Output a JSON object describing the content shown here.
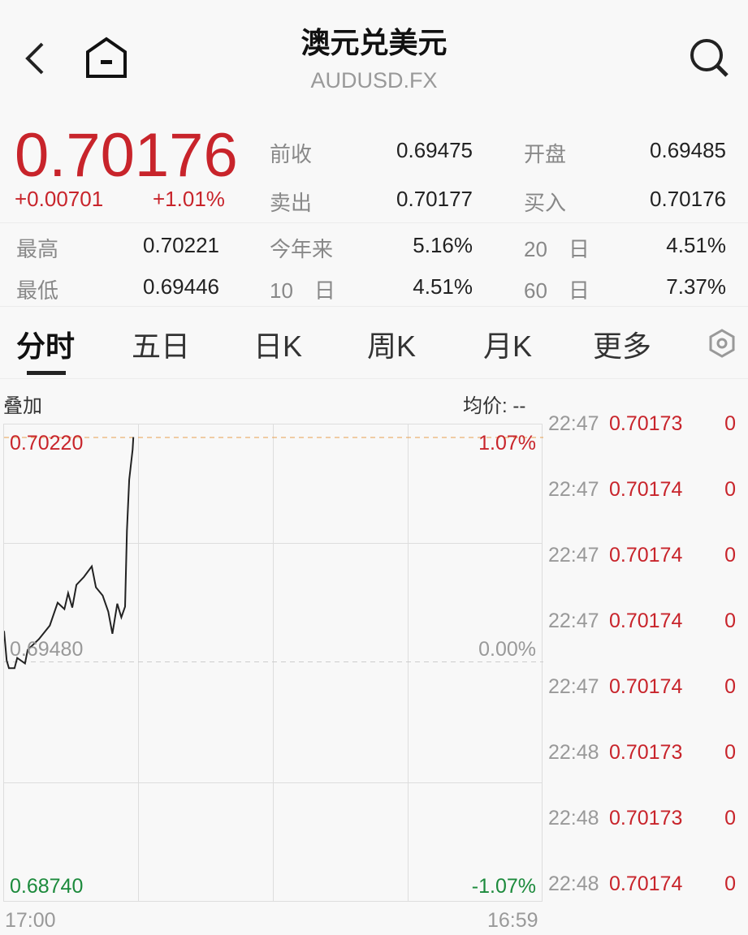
{
  "header": {
    "title": "澳元兑美元",
    "symbol": "AUDUSD.FX",
    "icons": [
      "back-icon",
      "home-icon",
      "search-icon"
    ]
  },
  "quote": {
    "price": "0.70176",
    "change": "+0.00701",
    "change_pct": "+1.01%",
    "stats": [
      {
        "label": "前收",
        "value": "0.69475"
      },
      {
        "label": "开盘",
        "value": "0.69485"
      },
      {
        "label": "卖出",
        "value": "0.70177"
      },
      {
        "label": "买入",
        "value": "0.70176"
      },
      {
        "label": "最高",
        "value": "0.70221"
      },
      {
        "label": "今年来",
        "value": "5.16%"
      },
      {
        "label": "20　日",
        "value": "4.51%"
      },
      {
        "label": "最低",
        "value": "0.69446"
      },
      {
        "label": "10　日",
        "value": "4.51%"
      },
      {
        "label": "60　日",
        "value": "7.37%"
      }
    ]
  },
  "tabs": [
    "分时",
    "五日",
    "日K",
    "周K",
    "月K",
    "更多"
  ],
  "chart_header": {
    "overlay": "叠加",
    "avg_price": "均价: --"
  },
  "colors": {
    "up": "#c8242b",
    "down": "#1c8a3c",
    "line": "#222222"
  },
  "chart_data": {
    "type": "line",
    "x_start": "17:00",
    "x_end": "16:59",
    "y_top": "0.70220",
    "y_mid": "0.69480",
    "y_bottom": "0.68740",
    "pct_top": "1.07%",
    "pct_mid": "0.00%",
    "pct_bottom": "-1.07%",
    "ylim": [
      0.6874,
      0.7022
    ],
    "points": [
      [
        "17:00",
        0.69582
      ],
      [
        "17:07",
        0.69485
      ],
      [
        "17:13",
        0.69459
      ],
      [
        "17:28",
        0.69459
      ],
      [
        "17:35",
        0.69493
      ],
      [
        "17:56",
        0.69475
      ],
      [
        "18:03",
        0.6952
      ],
      [
        "18:33",
        0.69555
      ],
      [
        "19:02",
        0.696
      ],
      [
        "19:23",
        0.69675
      ],
      [
        "19:41",
        0.69654
      ],
      [
        "19:51",
        0.69707
      ],
      [
        "20:02",
        0.69659
      ],
      [
        "20:13",
        0.69734
      ],
      [
        "20:33",
        0.6976
      ],
      [
        "20:54",
        0.69795
      ],
      [
        "21:05",
        0.69726
      ],
      [
        "21:23",
        0.69699
      ],
      [
        "21:38",
        0.69646
      ],
      [
        "21:49",
        0.69573
      ],
      [
        "22:02",
        0.69672
      ],
      [
        "22:13",
        0.69627
      ],
      [
        "22:23",
        0.69662
      ],
      [
        "22:28",
        0.69913
      ],
      [
        "22:34",
        0.70081
      ],
      [
        "22:43",
        0.7018
      ],
      [
        "22:45",
        0.70221
      ]
    ]
  },
  "ticks": [
    [
      "22:47",
      "0.70173",
      "0"
    ],
    [
      "22:47",
      "0.70174",
      "0"
    ],
    [
      "22:47",
      "0.70174",
      "0"
    ],
    [
      "22:47",
      "0.70174",
      "0"
    ],
    [
      "22:47",
      "0.70174",
      "0"
    ],
    [
      "22:48",
      "0.70173",
      "0"
    ],
    [
      "22:48",
      "0.70173",
      "0"
    ],
    [
      "22:48",
      "0.70174",
      "0"
    ]
  ]
}
